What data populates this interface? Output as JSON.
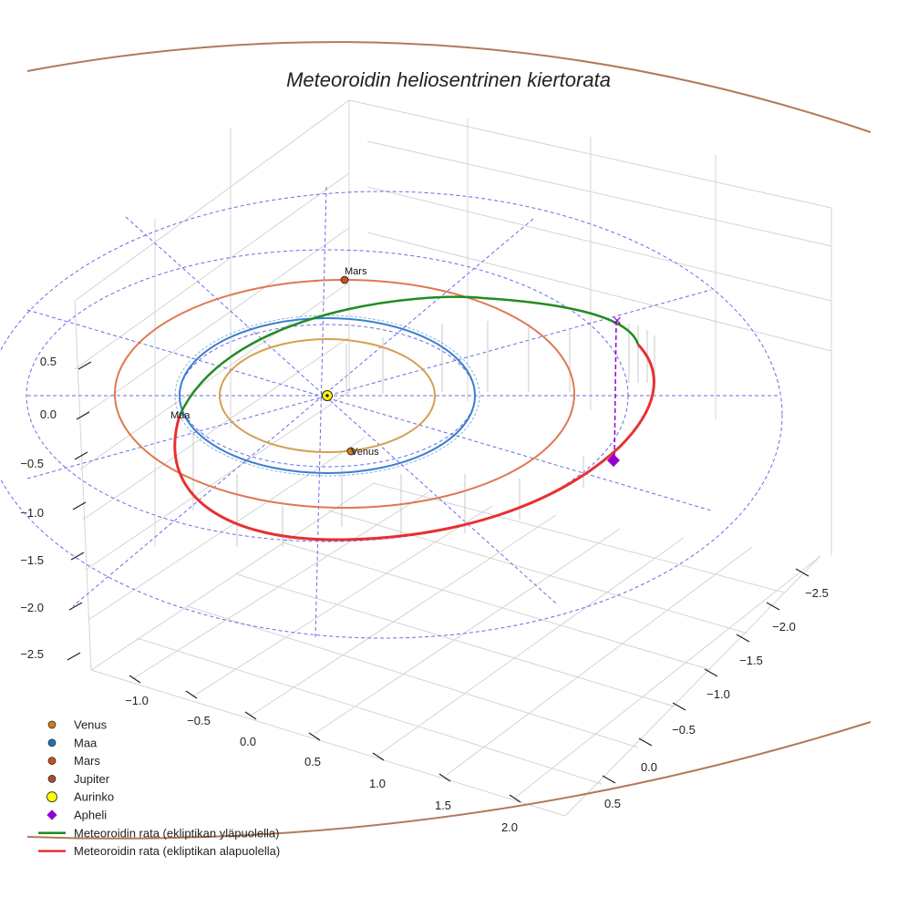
{
  "chart_data": {
    "type": "3d-orbit",
    "title": "Meteoroidin heliosentrinen kiertorata",
    "xlabel": "",
    "ylabel": "",
    "zlabel": "",
    "x_ticks": [
      "−1.0",
      "−0.5",
      "0.0",
      "0.5",
      "1.0",
      "1.5",
      "2.0"
    ],
    "y_ticks": [
      "0.5",
      "0.0",
      "−0.5",
      "−1.0",
      "−1.5",
      "−2.0",
      "−2.5"
    ],
    "z_ticks": [
      "0.5",
      "0.0",
      "−0.5",
      "−1.0",
      "−1.5",
      "−2.0",
      "−2.5"
    ],
    "planets": [
      {
        "name": "Venus",
        "orbit_radius_au": 0.72,
        "orbit_color": "#d4a050",
        "marker_color": "#c87f1e"
      },
      {
        "name": "Maa",
        "orbit_radius_au": 1.0,
        "orbit_color": "#3a7fd0",
        "marker_color": "#2171b5"
      },
      {
        "name": "Mars",
        "orbit_radius_au": 1.52,
        "orbit_color": "#e07850",
        "marker_color": "#c8501e"
      },
      {
        "name": "Jupiter",
        "orbit_radius_au": 5.2,
        "orbit_color": "#b07a5a",
        "marker_color": "#a0522d"
      }
    ],
    "sun": {
      "name": "Aurinko",
      "color": "#ffff00"
    },
    "aphelion": {
      "name": "Apheli",
      "color": "#9400d3"
    },
    "meteoroid_orbit": {
      "above_ecliptic": {
        "name": "Meteoroidin rata (ekliptikan yläpuolella)",
        "color": "#228b22"
      },
      "below_ecliptic": {
        "name": "Meteoroidin rata (ekliptikan alapuolella)",
        "color": "#e83030"
      }
    },
    "reference_grid_radii_au": [
      1,
      2,
      3
    ]
  },
  "labels": {
    "venus": "Venus",
    "maa": "Maa",
    "mars": "Mars"
  },
  "legend": [
    {
      "label": "Venus",
      "color": "#c87f1e",
      "kind": "dot"
    },
    {
      "label": "Maa",
      "color": "#2171b5",
      "kind": "dot"
    },
    {
      "label": "Mars",
      "color": "#c8501e",
      "kind": "dot"
    },
    {
      "label": "Jupiter",
      "color": "#a0522d",
      "kind": "dot"
    },
    {
      "label": "Aurinko",
      "color": "#ffff00",
      "kind": "sun"
    },
    {
      "label": "Apheli",
      "color": "#9400d3",
      "kind": "diamond"
    },
    {
      "label": "Meteoroidin rata (ekliptikan yläpuolella)",
      "color": "#228b22",
      "kind": "line"
    },
    {
      "label": "Meteoroidin rata (ekliptikan alapuolella)",
      "color": "#e83030",
      "kind": "line"
    }
  ]
}
